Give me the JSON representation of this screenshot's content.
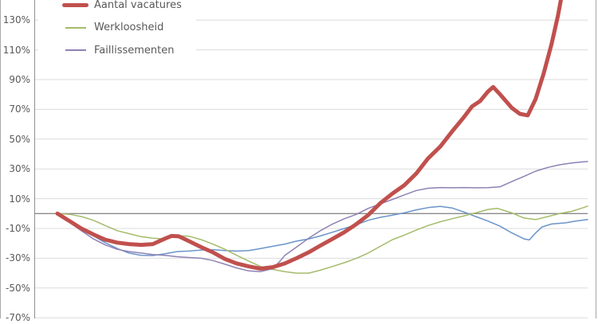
{
  "chart": {
    "legend": [
      {
        "label": "Aantal vacatures",
        "color": "#c0504d",
        "thick": true
      },
      {
        "label": "Werkloosheid",
        "color": "#a4bb6a",
        "thick": false
      },
      {
        "label": "Faillissementen",
        "color": "#8e81b4",
        "thick": false
      }
    ]
  },
  "chart_data": {
    "type": "line",
    "title": "",
    "legend_position": "top-left",
    "grid": true,
    "colors": {
      "gridline": "#dcdcdc",
      "zero_line": "#8a8a8a",
      "axis_line": "#8f8f8f",
      "tick_text": "#595959"
    },
    "x_axis": {
      "tick_labels_visible": false,
      "note": "x tick labels are cropped out of the screenshot; x encoded as fraction 0-1 of visible time span"
    },
    "y_axis": {
      "unit": "%",
      "visible_range": [
        -70,
        143
      ],
      "zero_line": true,
      "ticks": [
        {
          "value": 130,
          "label": "130%"
        },
        {
          "value": 110,
          "label": "110%"
        },
        {
          "value": 90,
          "label": "90%"
        },
        {
          "value": 70,
          "label": "70%"
        },
        {
          "value": 50,
          "label": "50%"
        },
        {
          "value": 30,
          "label": "30%"
        },
        {
          "value": 10,
          "label": "10%"
        },
        {
          "value": -10,
          "label": "-10%"
        },
        {
          "value": -30,
          "label": "-30%"
        },
        {
          "value": -50,
          "label": "-50%"
        },
        {
          "value": -70,
          "label": "-70%"
        }
      ]
    },
    "series": [
      {
        "name": "",
        "legend_visible": false,
        "color": "#6b94c8",
        "width": 1.5,
        "points": [
          [
            0,
            0
          ],
          [
            0.023,
            -5.5
          ],
          [
            0.045,
            -10.5
          ],
          [
            0.068,
            -15
          ],
          [
            0.09,
            -19.5
          ],
          [
            0.113,
            -23.5
          ],
          [
            0.135,
            -26.5
          ],
          [
            0.158,
            -28
          ],
          [
            0.18,
            -28.2
          ],
          [
            0.203,
            -27
          ],
          [
            0.226,
            -25.5
          ],
          [
            0.248,
            -25.2
          ],
          [
            0.271,
            -24.5
          ],
          [
            0.293,
            -24.2
          ],
          [
            0.316,
            -24.8
          ],
          [
            0.338,
            -25.2
          ],
          [
            0.361,
            -24.8
          ],
          [
            0.383,
            -23.5
          ],
          [
            0.406,
            -22
          ],
          [
            0.429,
            -20.5
          ],
          [
            0.451,
            -18.5
          ],
          [
            0.474,
            -17
          ],
          [
            0.496,
            -15
          ],
          [
            0.519,
            -12.5
          ],
          [
            0.541,
            -10
          ],
          [
            0.564,
            -7.5
          ],
          [
            0.586,
            -4.5
          ],
          [
            0.609,
            -2.5
          ],
          [
            0.632,
            -1
          ],
          [
            0.654,
            0.5
          ],
          [
            0.677,
            2.5
          ],
          [
            0.699,
            4
          ],
          [
            0.722,
            4.8
          ],
          [
            0.744,
            3.8
          ],
          [
            0.767,
            1
          ],
          [
            0.789,
            -2
          ],
          [
            0.812,
            -5
          ],
          [
            0.835,
            -8.5
          ],
          [
            0.857,
            -13
          ],
          [
            0.88,
            -17
          ],
          [
            0.89,
            -17.7
          ],
          [
            0.902,
            -13
          ],
          [
            0.914,
            -9
          ],
          [
            0.932,
            -7
          ],
          [
            0.959,
            -6.2
          ],
          [
            0.977,
            -5
          ],
          [
            1,
            -4
          ]
        ]
      },
      {
        "name": "Werkloosheid",
        "legend_visible": true,
        "color": "#a4bb6a",
        "width": 1.5,
        "points": [
          [
            0,
            0
          ],
          [
            0.023,
            -0.5
          ],
          [
            0.045,
            -2
          ],
          [
            0.068,
            -4.5
          ],
          [
            0.09,
            -8
          ],
          [
            0.113,
            -11.5
          ],
          [
            0.135,
            -13.5
          ],
          [
            0.158,
            -15.5
          ],
          [
            0.18,
            -16.5
          ],
          [
            0.203,
            -17
          ],
          [
            0.226,
            -14.8
          ],
          [
            0.248,
            -15.2
          ],
          [
            0.271,
            -17.5
          ],
          [
            0.293,
            -20.5
          ],
          [
            0.316,
            -24
          ],
          [
            0.338,
            -28
          ],
          [
            0.361,
            -32
          ],
          [
            0.383,
            -35.5
          ],
          [
            0.406,
            -37.5
          ],
          [
            0.429,
            -39
          ],
          [
            0.451,
            -40
          ],
          [
            0.474,
            -40
          ],
          [
            0.496,
            -38
          ],
          [
            0.519,
            -35.5
          ],
          [
            0.541,
            -33
          ],
          [
            0.564,
            -30
          ],
          [
            0.586,
            -26.5
          ],
          [
            0.609,
            -22
          ],
          [
            0.632,
            -17.5
          ],
          [
            0.654,
            -14.5
          ],
          [
            0.677,
            -11
          ],
          [
            0.699,
            -8
          ],
          [
            0.722,
            -5.5
          ],
          [
            0.744,
            -3.5
          ],
          [
            0.767,
            -1.5
          ],
          [
            0.789,
            0.5
          ],
          [
            0.812,
            2.8
          ],
          [
            0.83,
            3.5
          ],
          [
            0.857,
            0.5
          ],
          [
            0.88,
            -3
          ],
          [
            0.902,
            -4
          ],
          [
            0.925,
            -2
          ],
          [
            0.947,
            0
          ],
          [
            0.97,
            1.5
          ],
          [
            0.992,
            4
          ],
          [
            1,
            5
          ]
        ]
      },
      {
        "name": "Faillissementen",
        "legend_visible": true,
        "color": "#8e81b4",
        "width": 1.5,
        "points": [
          [
            0,
            0
          ],
          [
            0.023,
            -6
          ],
          [
            0.045,
            -11.5
          ],
          [
            0.068,
            -17
          ],
          [
            0.09,
            -21
          ],
          [
            0.113,
            -24
          ],
          [
            0.135,
            -25.5
          ],
          [
            0.158,
            -26.5
          ],
          [
            0.18,
            -27.5
          ],
          [
            0.203,
            -28
          ],
          [
            0.226,
            -29
          ],
          [
            0.248,
            -29.5
          ],
          [
            0.271,
            -30
          ],
          [
            0.293,
            -31.5
          ],
          [
            0.316,
            -34
          ],
          [
            0.338,
            -36.5
          ],
          [
            0.361,
            -38.5
          ],
          [
            0.383,
            -39
          ],
          [
            0.406,
            -37
          ],
          [
            0.421,
            -31.5
          ],
          [
            0.429,
            -28
          ],
          [
            0.451,
            -22.5
          ],
          [
            0.474,
            -16.5
          ],
          [
            0.496,
            -11.5
          ],
          [
            0.519,
            -7
          ],
          [
            0.541,
            -3.5
          ],
          [
            0.564,
            -0.5
          ],
          [
            0.586,
            3.5
          ],
          [
            0.609,
            6.5
          ],
          [
            0.632,
            9.5
          ],
          [
            0.654,
            12.5
          ],
          [
            0.677,
            15.5
          ],
          [
            0.699,
            17
          ],
          [
            0.722,
            17.5
          ],
          [
            0.744,
            17.3
          ],
          [
            0.767,
            17.5
          ],
          [
            0.789,
            17.3
          ],
          [
            0.812,
            17.4
          ],
          [
            0.835,
            18
          ],
          [
            0.857,
            21.5
          ],
          [
            0.88,
            25
          ],
          [
            0.902,
            28.5
          ],
          [
            0.925,
            31
          ],
          [
            0.947,
            32.8
          ],
          [
            0.97,
            34
          ],
          [
            0.992,
            34.8
          ],
          [
            1,
            35
          ]
        ]
      },
      {
        "name": "Aantal vacatures",
        "legend_visible": true,
        "color": "#c0504d",
        "width": 5,
        "points": [
          [
            0,
            0
          ],
          [
            0.023,
            -5
          ],
          [
            0.045,
            -10
          ],
          [
            0.068,
            -14
          ],
          [
            0.09,
            -17.5
          ],
          [
            0.113,
            -19.5
          ],
          [
            0.135,
            -20.5
          ],
          [
            0.158,
            -21
          ],
          [
            0.18,
            -20.5
          ],
          [
            0.203,
            -16.8
          ],
          [
            0.215,
            -15
          ],
          [
            0.229,
            -15.3
          ],
          [
            0.248,
            -18.5
          ],
          [
            0.271,
            -22.5
          ],
          [
            0.293,
            -26
          ],
          [
            0.316,
            -30.5
          ],
          [
            0.338,
            -33.5
          ],
          [
            0.361,
            -35.5
          ],
          [
            0.383,
            -37
          ],
          [
            0.406,
            -36
          ],
          [
            0.429,
            -33.5
          ],
          [
            0.451,
            -30
          ],
          [
            0.474,
            -26
          ],
          [
            0.496,
            -21.5
          ],
          [
            0.519,
            -17
          ],
          [
            0.541,
            -12.5
          ],
          [
            0.564,
            -7
          ],
          [
            0.586,
            -1
          ],
          [
            0.609,
            7
          ],
          [
            0.632,
            13.5
          ],
          [
            0.654,
            19
          ],
          [
            0.677,
            27
          ],
          [
            0.699,
            37
          ],
          [
            0.722,
            45
          ],
          [
            0.744,
            55
          ],
          [
            0.767,
            65
          ],
          [
            0.782,
            72
          ],
          [
            0.797,
            75.5
          ],
          [
            0.812,
            82
          ],
          [
            0.822,
            85
          ],
          [
            0.835,
            80
          ],
          [
            0.857,
            71
          ],
          [
            0.872,
            67
          ],
          [
            0.887,
            66
          ],
          [
            0.902,
            77
          ],
          [
            0.917,
            94
          ],
          [
            0.932,
            114
          ],
          [
            0.944,
            133
          ],
          [
            0.954,
            152
          ]
        ]
      }
    ]
  }
}
